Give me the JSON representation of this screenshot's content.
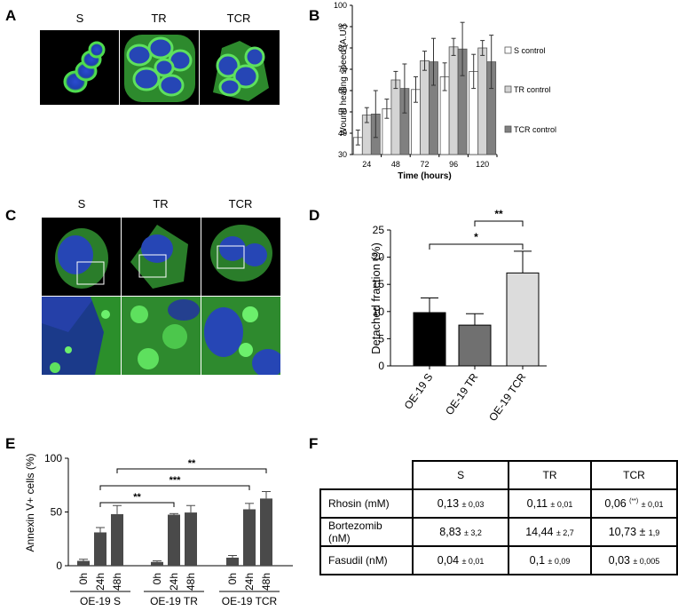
{
  "panels": {
    "A": {
      "letter": "A",
      "labels": [
        "S",
        "TR",
        "TCR"
      ]
    },
    "B": {
      "letter": "B"
    },
    "C": {
      "letter": "C",
      "labels": [
        "S",
        "TR",
        "TCR"
      ]
    },
    "D": {
      "letter": "D"
    },
    "E": {
      "letter": "E"
    },
    "F": {
      "letter": "F"
    }
  },
  "table": {
    "headers": [
      "S",
      "TR",
      "TCR"
    ],
    "rows": [
      {
        "name": "Rhosin (mM)",
        "cells": [
          {
            "value": "0,13",
            "err": "± 0,03",
            "sig": ""
          },
          {
            "value": "0,11",
            "err": "± 0,01",
            "sig": ""
          },
          {
            "value": "0,06",
            "err": "± 0,01",
            "sig": "(**)"
          }
        ]
      },
      {
        "name": "Bortezomib (nM)",
        "cells": [
          {
            "value": "8,83",
            "err": "± 3,2",
            "sig": ""
          },
          {
            "value": "14,44",
            "err": "± 2,7",
            "sig": ""
          },
          {
            "value": "10,73 ±",
            "err": "1,9",
            "sig": ""
          }
        ]
      },
      {
        "name": "Fasudil (nM)",
        "cells": [
          {
            "value": "0,04",
            "err": "± 0,01",
            "sig": ""
          },
          {
            "value": "0,1",
            "err": "± 0,09",
            "sig": ""
          },
          {
            "value": "0,03",
            "err": "± 0,005",
            "sig": ""
          }
        ]
      }
    ]
  },
  "chart_data": [
    {
      "id": "B",
      "type": "bar",
      "title": "",
      "xlabel": "Time (hours)",
      "ylabel": "Wound healing speed (A.U.)",
      "ylim": [
        30,
        100
      ],
      "yticks": [
        30,
        40,
        50,
        60,
        70,
        80,
        90,
        100
      ],
      "categories": [
        "24",
        "48",
        "72",
        "96",
        "120"
      ],
      "series": [
        {
          "name": "S control",
          "color": "#ffffff",
          "values": [
            38,
            51.5,
            60.5,
            66.5,
            69
          ],
          "errors": [
            3.5,
            4.5,
            6,
            6.5,
            8
          ]
        },
        {
          "name": "TR control",
          "color": "#d4d4d4",
          "values": [
            48.5,
            65,
            74,
            80.5,
            80
          ],
          "errors": [
            3.5,
            4,
            4.5,
            4,
            3.5
          ]
        },
        {
          "name": "TCR control",
          "color": "#808080",
          "values": [
            49,
            61,
            73.5,
            79.5,
            73.5
          ],
          "errors": [
            11,
            11.5,
            11,
            12.5,
            12.5
          ]
        }
      ],
      "legend": "right",
      "grid": false
    },
    {
      "id": "D",
      "type": "bar",
      "title": "",
      "xlabel": "",
      "ylabel": "Detached fraction (%)",
      "ylim": [
        0,
        25
      ],
      "yticks": [
        0,
        5,
        10,
        15,
        20,
        25
      ],
      "categories": [
        "OE-19 S",
        "OE-19 TR",
        "OE-19 TCR"
      ],
      "values": [
        9.8,
        7.5,
        17.1
      ],
      "errors": [
        2.7,
        2.1,
        4
      ],
      "colors": [
        "#000000",
        "#707070",
        "#dcdcdc"
      ],
      "significance": [
        {
          "from": 1,
          "to": 2,
          "label": "**"
        },
        {
          "from": 0,
          "to": 2,
          "label": "*"
        }
      ],
      "grid": false
    },
    {
      "id": "E",
      "type": "bar",
      "title": "",
      "xlabel": "",
      "ylabel": "Annexin V+ cells (%)",
      "ylim": [
        0,
        100
      ],
      "yticks": [
        0,
        50,
        100
      ],
      "groups": [
        {
          "name": "OE-19 S",
          "categories": [
            "0h",
            "24h",
            "48h"
          ],
          "values": [
            4.5,
            31,
            48
          ],
          "errors": [
            1.5,
            4.5,
            8
          ]
        },
        {
          "name": "OE-19 TR",
          "categories": [
            "0h",
            "24h",
            "48h"
          ],
          "values": [
            3.5,
            47.5,
            49.5
          ],
          "errors": [
            1,
            1,
            6.5
          ]
        },
        {
          "name": "OE-19 TCR",
          "categories": [
            "0h",
            "24h",
            "48h"
          ],
          "values": [
            7.5,
            52.5,
            62.5
          ],
          "errors": [
            2,
            5.5,
            6.5
          ]
        }
      ],
      "bar_color": "#4a4a4a",
      "significance": [
        {
          "from": [
            0,
            1
          ],
          "to": [
            1,
            1
          ],
          "label": "**"
        },
        {
          "from": [
            0,
            1
          ],
          "to": [
            2,
            1
          ],
          "label": "***"
        },
        {
          "from": [
            0,
            2
          ],
          "to": [
            2,
            2
          ],
          "label": "**"
        }
      ],
      "grid": false
    }
  ]
}
